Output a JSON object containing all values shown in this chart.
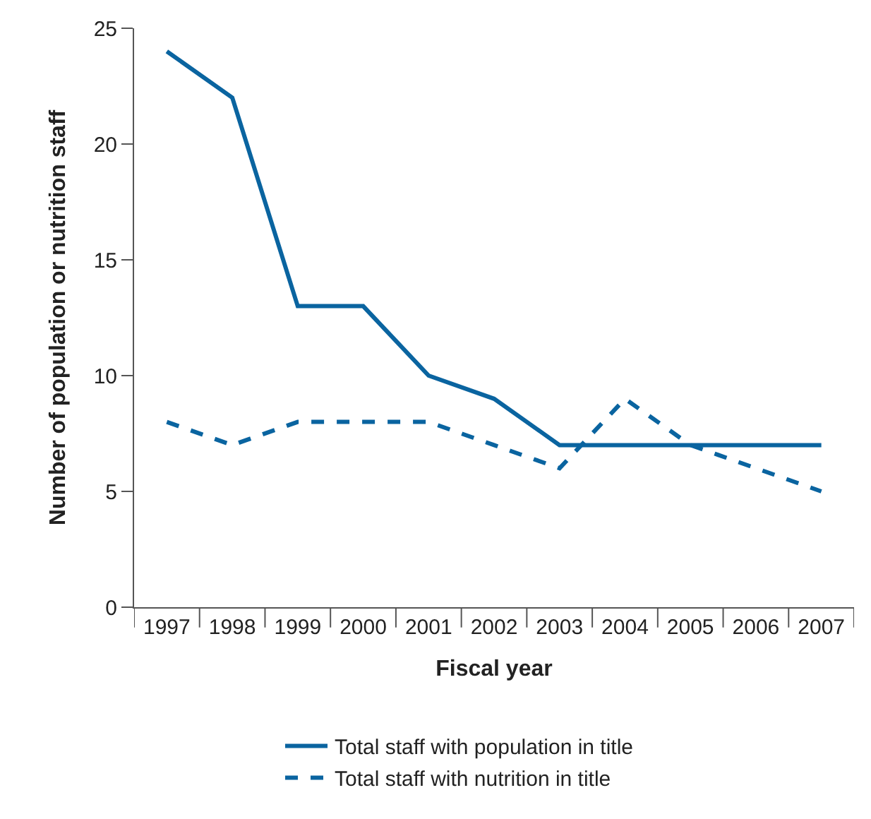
{
  "chart_data": {
    "type": "line",
    "xlabel": "Fiscal year",
    "ylabel": "Number of population or nutrition staff",
    "categories": [
      "1997",
      "1998",
      "1999",
      "2000",
      "2001",
      "2002",
      "2003",
      "2004",
      "2005",
      "2006",
      "2007"
    ],
    "series": [
      {
        "name": "Total staff with population in title",
        "color": "#0a64a0",
        "line_style": "solid",
        "values": [
          24,
          22,
          13,
          13,
          10,
          9,
          7,
          7,
          7,
          7,
          7
        ]
      },
      {
        "name": "Total staff with nutrition in title",
        "color": "#0a64a0",
        "line_style": "dashed",
        "values": [
          8,
          7,
          8,
          8,
          8,
          7,
          6,
          9,
          7,
          6,
          5
        ]
      }
    ],
    "ylim": [
      0,
      25
    ],
    "yticks": [
      0,
      5,
      10,
      15,
      20,
      25
    ],
    "legend": "bottom",
    "marker": "none"
  }
}
